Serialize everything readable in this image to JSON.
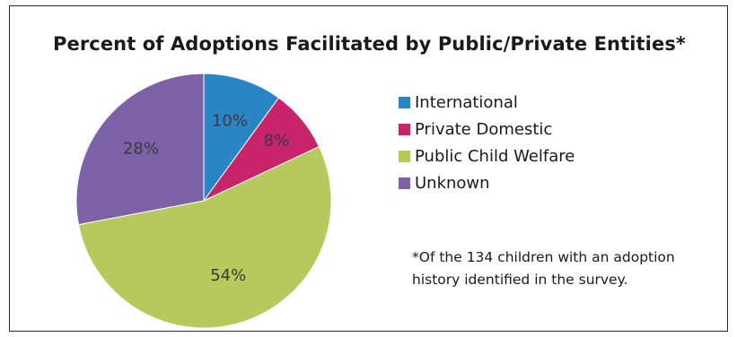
{
  "chart_data": {
    "type": "pie",
    "title": "Percent of Adoptions Facilitated by Public/Private Entities*",
    "categories": [
      "International",
      "Private Domestic",
      "Public Child Welfare",
      "Unknown"
    ],
    "values": [
      10,
      8,
      54,
      28
    ],
    "value_labels": [
      "10%",
      "8%",
      "54%",
      "28%"
    ],
    "colors": [
      "#2a85c4",
      "#c8246b",
      "#b7c95c",
      "#7d62a8"
    ],
    "start_angle": "12 o'clock",
    "direction": "clockwise",
    "legend": "right"
  },
  "footnote": {
    "line1": "*Of the 134 children with an adoption",
    "line2": "history  identified in the survey."
  }
}
